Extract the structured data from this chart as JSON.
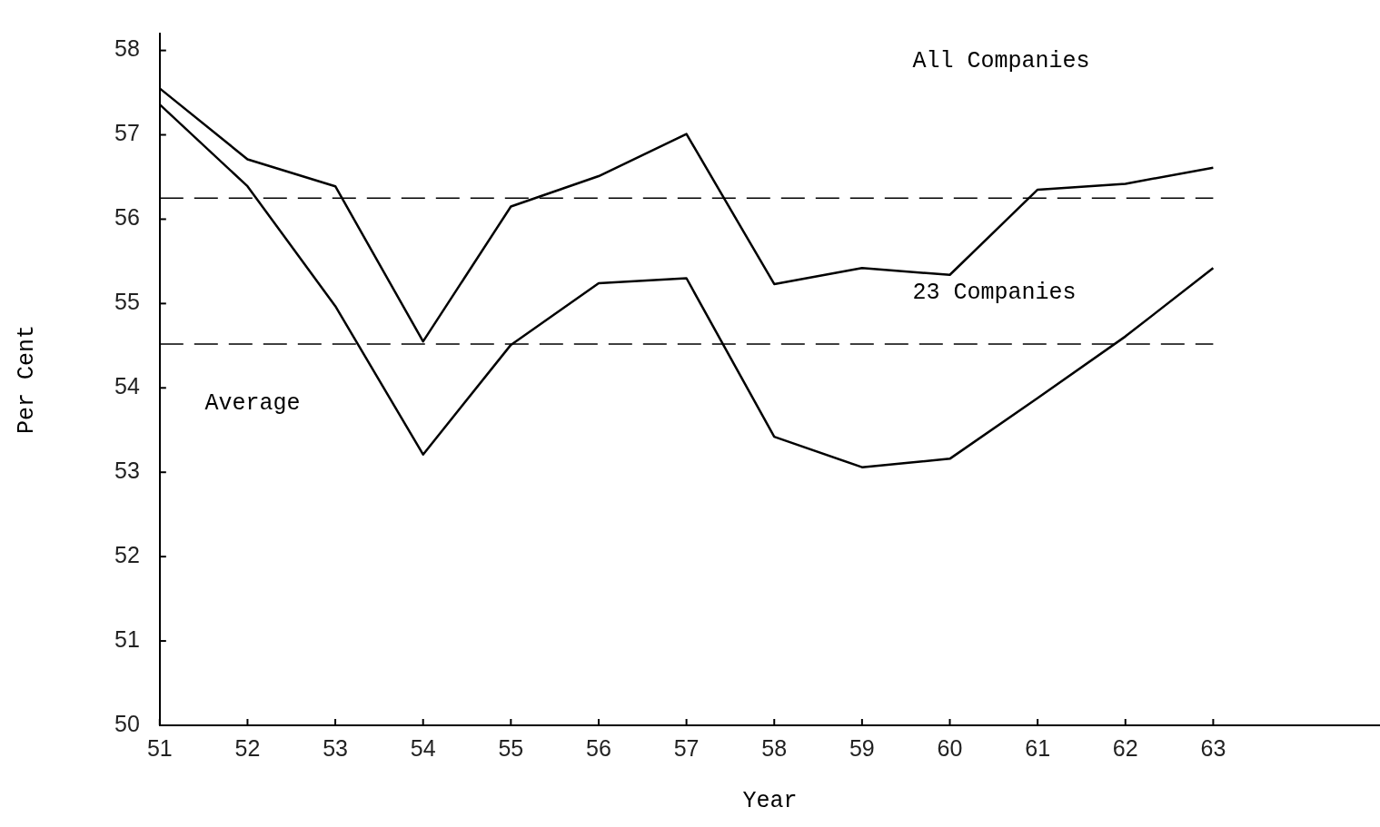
{
  "chart_data": {
    "type": "line",
    "xlabel": "Year",
    "ylabel": "Per Cent",
    "x": [
      51,
      52,
      53,
      54,
      55,
      56,
      57,
      58,
      59,
      60,
      61,
      62,
      63
    ],
    "series": [
      {
        "color": "#000000",
        "values": [
          57.55,
          56.71,
          56.39,
          54.55,
          56.15,
          56.51,
          57.01,
          55.23,
          55.42,
          55.34,
          56.35,
          56.42,
          56.61
        ]
      },
      {
        "color": "#000000",
        "values": [
          57.36,
          56.39,
          54.97,
          53.21,
          54.51,
          55.24,
          55.3,
          53.42,
          53.06,
          53.16,
          53.88,
          54.61,
          55.42
        ]
      }
    ],
    "xlim": [
      51,
      64.9
    ],
    "xticks": [
      51,
      52,
      53,
      54,
      55,
      56,
      57,
      58,
      59,
      60,
      61,
      62,
      63
    ],
    "ylim": [
      50,
      58.2
    ],
    "yticks": [
      50,
      51,
      52,
      53,
      54,
      55,
      56,
      57,
      58
    ],
    "ref_lines": [
      {
        "axis": "y",
        "value": 56.25,
        "line_style": "dashed"
      },
      {
        "axis": "y",
        "value": 54.52,
        "line_style": "dashed"
      }
    ],
    "annotations": [
      "All Companies",
      "23 Companies",
      "Average"
    ],
    "grid": false,
    "legend": false,
    "marker": "none",
    "line_style": "solid"
  }
}
